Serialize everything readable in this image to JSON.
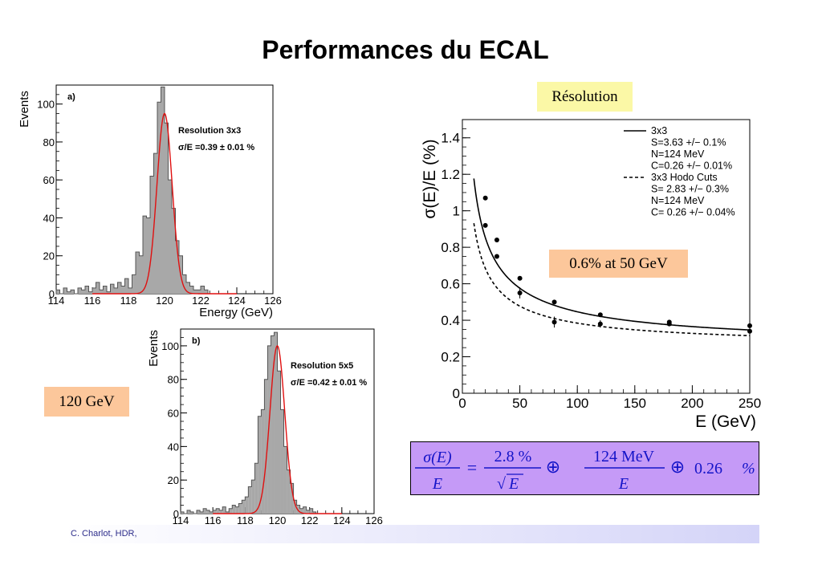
{
  "title": "Performances du ECAL",
  "labels": {
    "resolution": "Résolution",
    "at50": "0.6% at 50 GeV",
    "energy120": "120 GeV"
  },
  "footer": "C. Charlot, HDR,",
  "formula": {
    "lhs_num": "σ(E)",
    "lhs_den": "E",
    "eq": "=",
    "t1_num": "2.8 %",
    "t1_den_root": "√",
    "t1_den_var": "E",
    "oplus1": "⊕",
    "t2_num": "124 MeV",
    "t2_den": "E",
    "oplus2": "⊕",
    "t3": "0.26",
    "t3_unit": "%"
  },
  "chart_data": [
    {
      "type": "bar",
      "panel_label": "a)",
      "ylabel": "Events",
      "xlabel": "Energy (GeV)",
      "xlim": [
        114,
        126
      ],
      "ylim": [
        0,
        110
      ],
      "xticks": [
        114,
        116,
        118,
        120,
        122,
        124,
        126
      ],
      "yticks": [
        0,
        20,
        40,
        60,
        80,
        100
      ],
      "annotations": [
        "Resolution 3x3",
        "σ/E =0.39 ± 0.01 %"
      ],
      "histogram": {
        "bin_width": 0.2,
        "x": [
          114.1,
          114.3,
          114.5,
          114.7,
          114.9,
          115.1,
          115.3,
          115.5,
          115.7,
          115.9,
          116.1,
          116.3,
          116.5,
          116.7,
          116.9,
          117.1,
          117.3,
          117.5,
          117.7,
          117.9,
          118.1,
          118.3,
          118.5,
          118.7,
          118.9,
          119.1,
          119.3,
          119.5,
          119.7,
          119.9,
          120.1,
          120.3,
          120.5,
          120.7,
          120.9,
          121.1,
          121.3,
          121.5,
          121.7,
          121.9,
          122.1,
          122.3,
          122.5
        ],
        "values": [
          2,
          0,
          3,
          1,
          2,
          0,
          3,
          2,
          4,
          1,
          3,
          6,
          2,
          4,
          1,
          5,
          3,
          6,
          4,
          8,
          3,
          10,
          22,
          20,
          41,
          40,
          62,
          74,
          101,
          109,
          90,
          60,
          45,
          28,
          20,
          10,
          6,
          4,
          2,
          2,
          4,
          2,
          0
        ]
      },
      "fit": {
        "mean": 120.0,
        "sigma": 0.42,
        "amplitude": 95
      }
    },
    {
      "type": "bar",
      "panel_label": "b)",
      "ylabel": "Events",
      "xlabel": "Energy (GeV)",
      "xlim": [
        114,
        126
      ],
      "ylim": [
        0,
        110
      ],
      "xticks": [
        114,
        116,
        118,
        120,
        122,
        124,
        126
      ],
      "yticks": [
        0,
        20,
        40,
        60,
        80,
        100
      ],
      "annotations": [
        "Resolution 5x5",
        "σ/E =0.42 ± 0.01 %"
      ],
      "histogram": {
        "bin_width": 0.2,
        "x": [
          114.1,
          114.3,
          114.5,
          114.7,
          114.9,
          115.1,
          115.3,
          115.5,
          115.7,
          115.9,
          116.1,
          116.3,
          116.5,
          116.7,
          116.9,
          117.1,
          117.3,
          117.5,
          117.7,
          117.9,
          118.1,
          118.3,
          118.5,
          118.7,
          118.9,
          119.1,
          119.3,
          119.5,
          119.7,
          119.9,
          120.1,
          120.3,
          120.5,
          120.7,
          120.9,
          121.1,
          121.3,
          121.5,
          121.7,
          121.9,
          122.1,
          122.3,
          122.5
        ],
        "values": [
          1,
          0,
          2,
          1,
          0,
          2,
          1,
          3,
          2,
          1,
          2,
          3,
          2,
          4,
          1,
          3,
          5,
          4,
          6,
          8,
          10,
          16,
          20,
          30,
          58,
          62,
          80,
          100,
          106,
          108,
          85,
          62,
          40,
          26,
          18,
          8,
          5,
          3,
          4,
          2,
          3,
          1,
          0
        ]
      },
      "fit": {
        "mean": 120.0,
        "sigma": 0.46,
        "amplitude": 100
      }
    },
    {
      "type": "line",
      "ylabel": "σ(E)/E (%)",
      "xlabel": "E (GeV)",
      "xlim": [
        0,
        250
      ],
      "ylim": [
        0,
        1.5
      ],
      "xticks": [
        0,
        50,
        100,
        150,
        200,
        250
      ],
      "yticks": [
        0,
        0.2,
        0.4,
        0.6,
        0.8,
        1,
        1.2,
        1.4
      ],
      "ytick_labels": [
        "0",
        "0.2",
        "0.4",
        "0.6",
        "0.8",
        "1",
        "1.2",
        "1.4"
      ],
      "legend": {
        "placement": "top-right",
        "entries": [
          {
            "name": "3x3",
            "style": "solid"
          },
          {
            "name": "S=3.63 +/− 0.1%",
            "style": "none"
          },
          {
            "name": "N=124 MeV",
            "style": "none"
          },
          {
            "name": "C=0.26 +/− 0.01%",
            "style": "none"
          },
          {
            "name": "3x3 Hodo Cuts",
            "style": "dashed"
          },
          {
            "name": "S= 2.83 +/− 0.3%",
            "style": "none"
          },
          {
            "name": "N=124 MeV",
            "style": "none"
          },
          {
            "name": "C= 0.26 +/− 0.04%",
            "style": "none"
          }
        ]
      },
      "series": [
        {
          "name": "3x3",
          "style": "solid",
          "S": 3.63,
          "N": 0.124,
          "C": 0.26,
          "points": {
            "x": [
              20,
              30,
              50,
              80,
              120,
              180,
              250
            ],
            "y": [
              1.07,
              0.84,
              0.63,
              0.5,
              0.43,
              0.39,
              0.37
            ],
            "yerr": [
              0.01,
              0.01,
              0.01,
              0.01,
              0.01,
              0.01,
              0.01
            ]
          }
        },
        {
          "name": "3x3 Hodo Cuts",
          "style": "dashed",
          "S": 2.83,
          "N": 0.124,
          "C": 0.26,
          "points": {
            "x": [
              20,
              30,
              50,
              80,
              120,
              180,
              250
            ],
            "y": [
              0.92,
              0.75,
              0.55,
              0.39,
              0.38,
              0.38,
              0.34
            ],
            "yerr": [
              0.01,
              0.01,
              0.03,
              0.03,
              0.02,
              0.01,
              0.01
            ]
          }
        }
      ]
    }
  ]
}
